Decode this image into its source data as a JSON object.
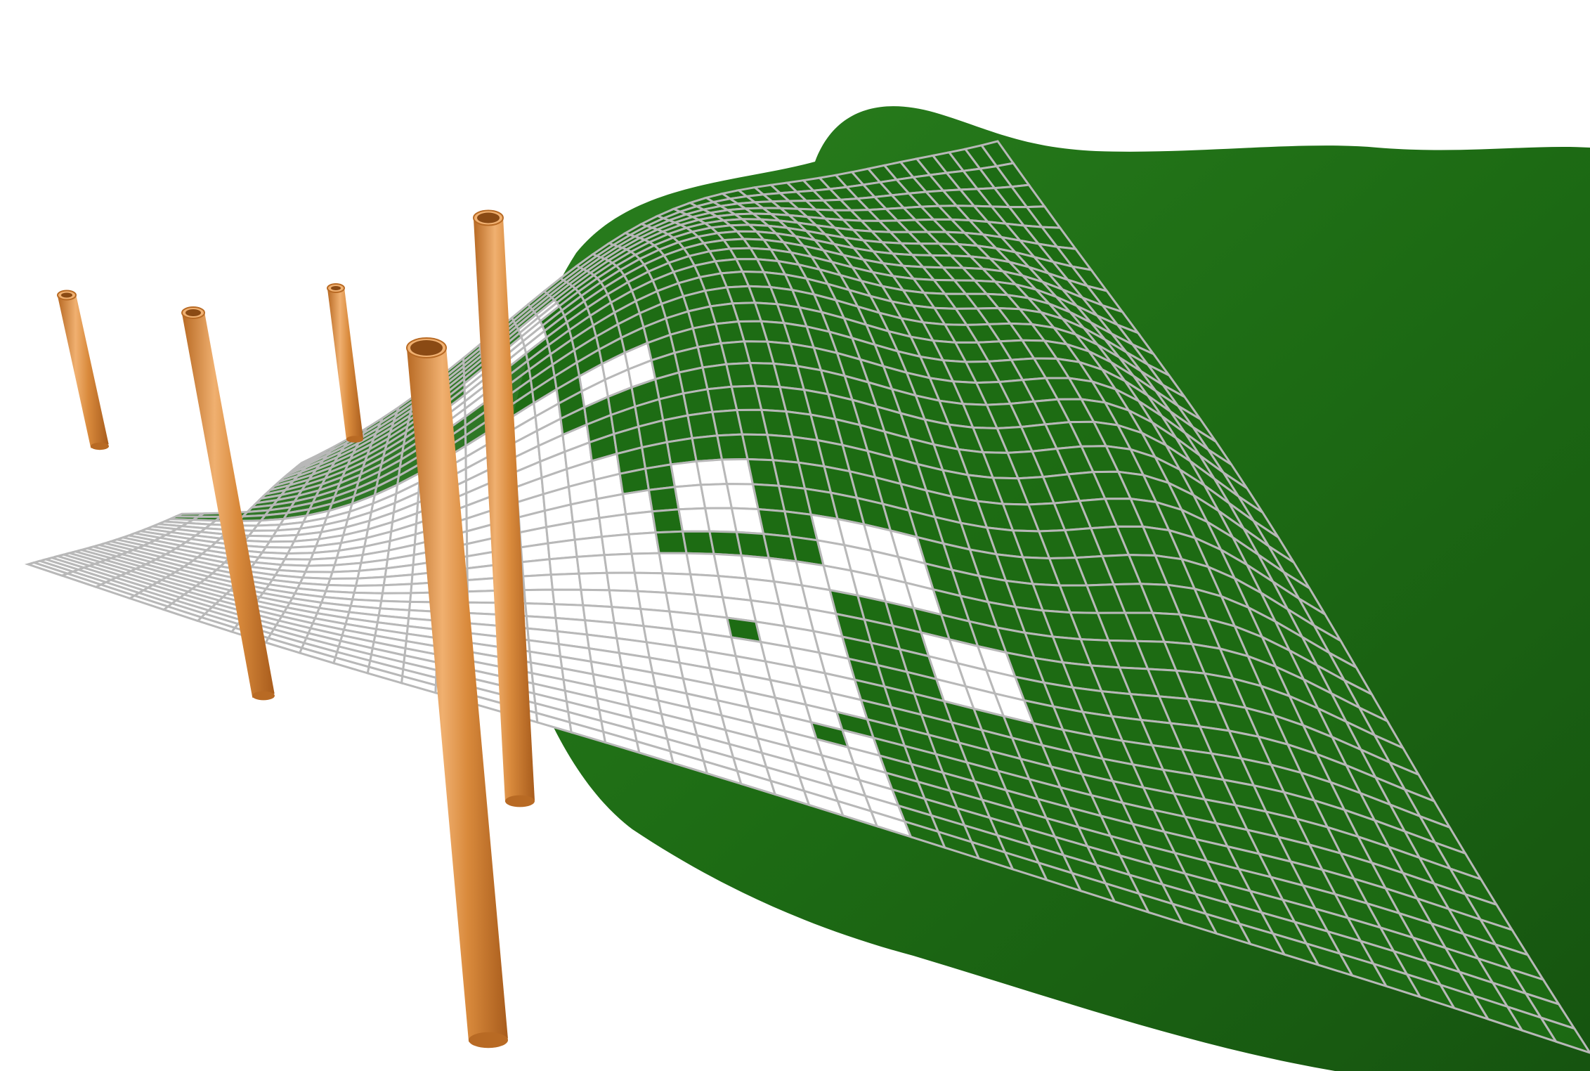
{
  "scene": {
    "type": "3d-terrain-grid-diagram",
    "colors": {
      "background": "#ffffff",
      "terrain": "#1d6b14",
      "terrain_dark": "#165410",
      "terrain_light": "#2a7f1e",
      "grid_line": "#b8b8b8",
      "grid_cell_open": "#ffffff",
      "well_pipe": "#d98a3c",
      "well_pipe_shadow": "#b86a24",
      "well_pipe_highlight": "#f0b070"
    },
    "icons": {
      "well": "vertical-pipe",
      "grid": "surface-mesh"
    },
    "wells": [
      {
        "id": "well-1"
      },
      {
        "id": "well-2"
      },
      {
        "id": "well-3"
      },
      {
        "id": "well-4"
      },
      {
        "id": "well-5"
      }
    ],
    "grid": {
      "rows": 38,
      "cols": 46
    }
  }
}
